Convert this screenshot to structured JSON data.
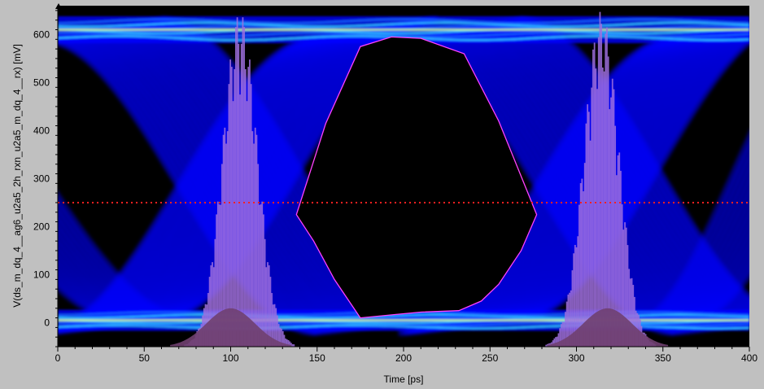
{
  "chart_data": {
    "type": "eye-diagram",
    "xlabel": "Time [ps]",
    "ylabel": "V(ds_m_dq_4__ag6_u2a5_2h_rxn_u2a5_m_dq_4__rx) [mV]",
    "xlim": [
      0,
      400
    ],
    "ylim": [
      -50,
      660
    ],
    "x_ticks": [
      0,
      50,
      100,
      150,
      200,
      250,
      300,
      350,
      400
    ],
    "y_ticks": [
      0,
      100,
      200,
      300,
      400,
      500,
      600
    ],
    "x_ticks_text": [
      "0",
      "50",
      "100",
      "150",
      "200",
      "250",
      "300",
      "350",
      "400"
    ],
    "y_ticks_text": [
      "0",
      "100",
      "200",
      "300",
      "400",
      "500",
      "600"
    ],
    "grid": false,
    "background_color": "#000000",
    "frame_color": "#c0c0c0",
    "threshold_mV": 250,
    "threshold_color": "#ff2020",
    "eye_levels": {
      "high_mV": 610,
      "low_mV": 5
    },
    "crossing_times_ps": [
      105,
      312
    ],
    "eye_mask": {
      "color": "#ff40ff",
      "points": [
        [
          138,
          225
        ],
        [
          155,
          415
        ],
        [
          175,
          575
        ],
        [
          193,
          595
        ],
        [
          210,
          592
        ],
        [
          235,
          560
        ],
        [
          255,
          420
        ],
        [
          277,
          225
        ],
        [
          268,
          150
        ],
        [
          255,
          80
        ],
        [
          245,
          45
        ],
        [
          232,
          25
        ],
        [
          210,
          22
        ],
        [
          195,
          17
        ],
        [
          175,
          10
        ],
        [
          160,
          90
        ],
        [
          148,
          170
        ]
      ]
    },
    "jitter_histograms": [
      {
        "center_ps": 105,
        "peak_mV": 650,
        "width_ps": 32
      },
      {
        "center_ps": 314,
        "peak_mV": 650,
        "width_ps": 32
      }
    ],
    "amplitude_histograms": [
      {
        "center_ps": 100,
        "peak_mV": 30
      },
      {
        "center_ps": 318,
        "peak_mV": 30
      }
    ],
    "colors": {
      "eye_density": [
        "#0000ff",
        "#1a66ff",
        "#33ccff",
        "#66ff99",
        "#ffff44"
      ],
      "jitter_histogram": "#a070e0",
      "amplitude_histogram": "#704070"
    }
  }
}
